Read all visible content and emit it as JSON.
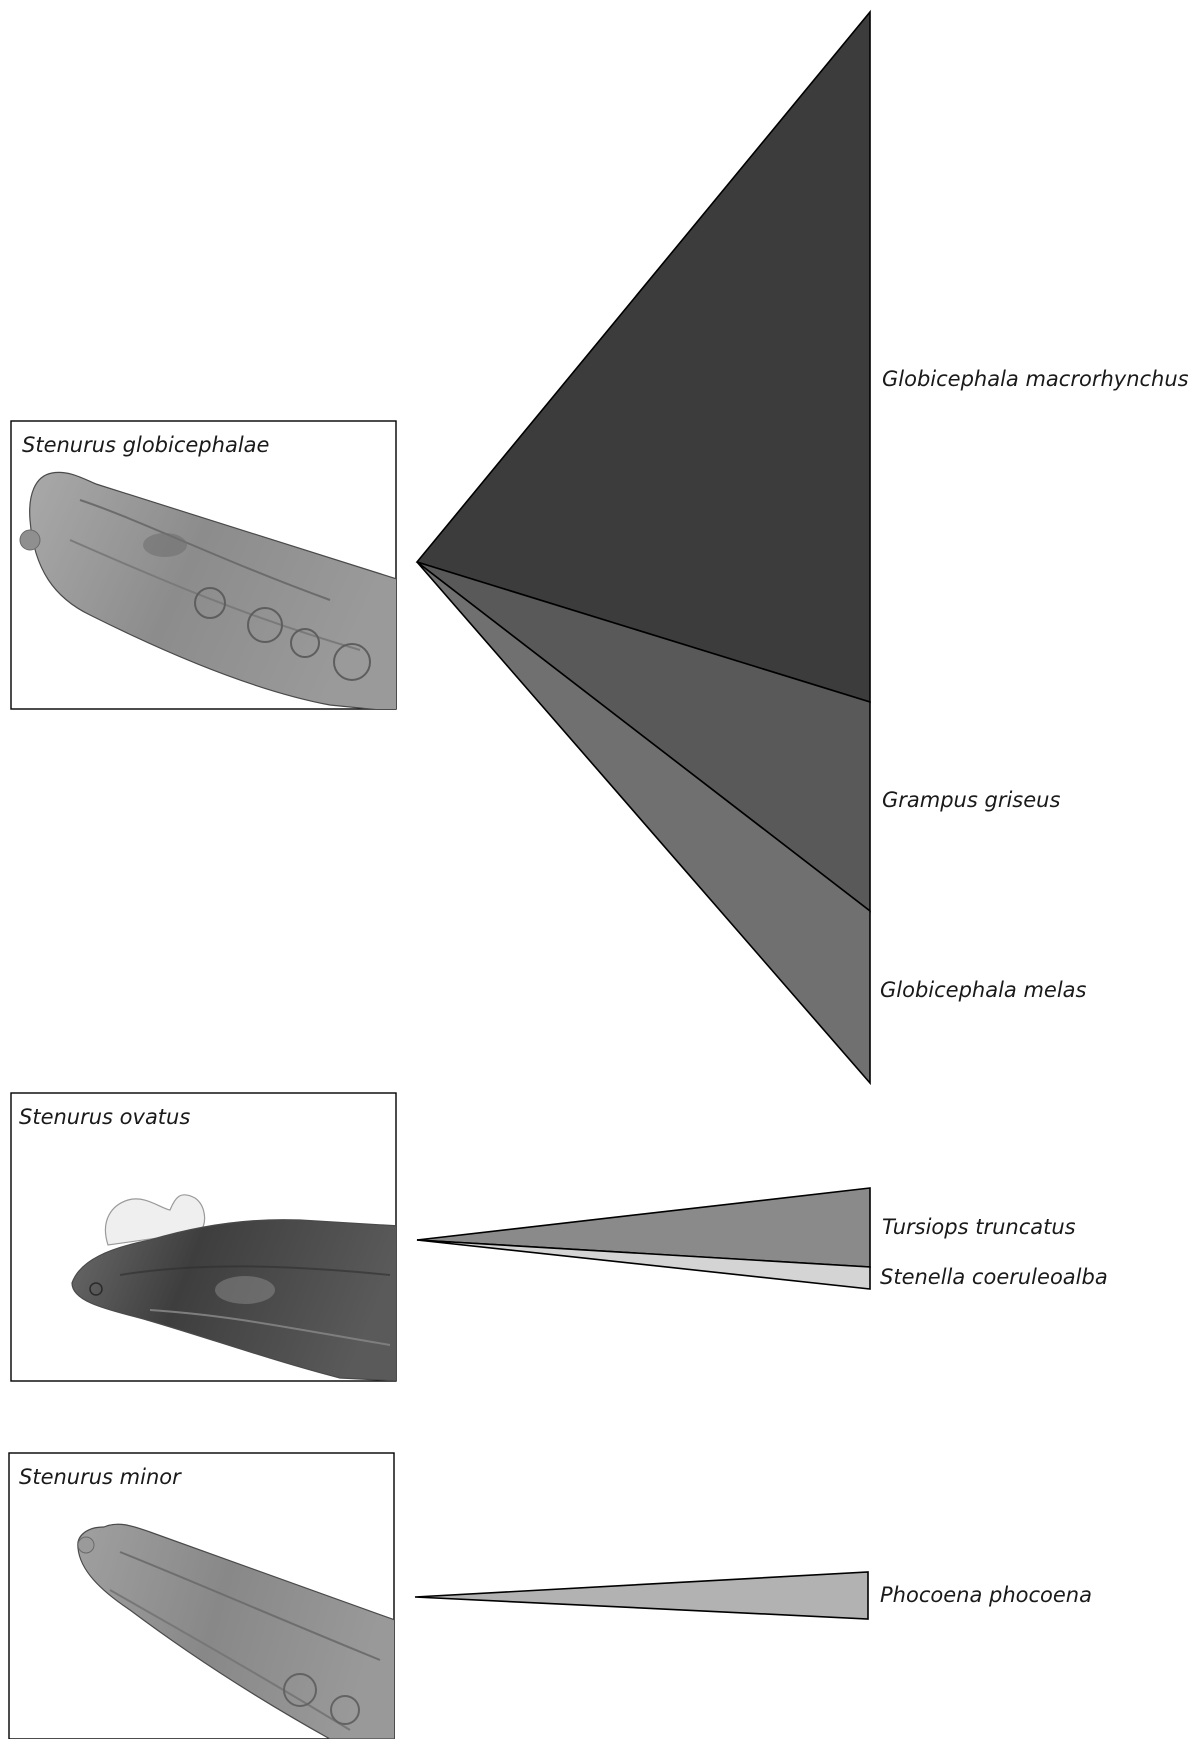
{
  "parasites": [
    {
      "name": "Stenurus globicephalae",
      "hosts": [
        {
          "name": "Globicephala macrorhynchus",
          "color": "#3c3c3c"
        },
        {
          "name": "Grampus griseus",
          "color": "#595959"
        },
        {
          "name": "Globicephala melas",
          "color": "#707070"
        }
      ]
    },
    {
      "name": "Stenurus ovatus",
      "hosts": [
        {
          "name": "Tursiops truncatus",
          "color": "#8a8a8a"
        },
        {
          "name": "Stenella coeruleoalba",
          "color": "#d4d4d4"
        }
      ]
    },
    {
      "name": "Stenurus minor",
      "hosts": [
        {
          "name": "Phocoena phocoena",
          "color": "#b2b2b2"
        }
      ]
    }
  ]
}
